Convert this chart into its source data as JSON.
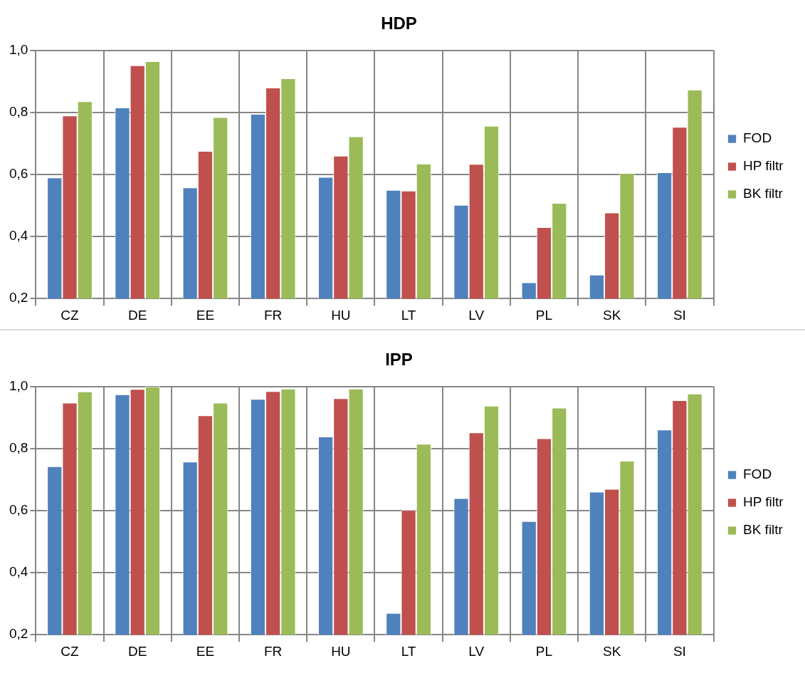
{
  "chart_data": [
    {
      "type": "bar",
      "title": "HDP",
      "categories": [
        "CZ",
        "DE",
        "EE",
        "FR",
        "HU",
        "LT",
        "LV",
        "PL",
        "SK",
        "SI"
      ],
      "series": [
        {
          "name": "FOD",
          "color": "#4f81bd",
          "values": [
            0.59,
            0.816,
            0.558,
            0.795,
            0.592,
            0.55,
            0.502,
            0.252,
            0.277,
            0.607
          ]
        },
        {
          "name": "HP filtr",
          "color": "#c0504d",
          "values": [
            0.79,
            0.952,
            0.676,
            0.88,
            0.66,
            0.548,
            0.634,
            0.43,
            0.477,
            0.753
          ]
        },
        {
          "name": "BK filtr",
          "color": "#9bbb59",
          "values": [
            0.836,
            0.965,
            0.785,
            0.91,
            0.723,
            0.635,
            0.757,
            0.508,
            0.604,
            0.873
          ]
        }
      ],
      "ylim": [
        0.2,
        1.0
      ],
      "yticks": [
        {
          "value": 0.2,
          "label": "0,2"
        },
        {
          "value": 0.4,
          "label": "0,4"
        },
        {
          "value": 0.6,
          "label": "0,6"
        },
        {
          "value": 0.8,
          "label": "0,8"
        },
        {
          "value": 1.0,
          "label": "1,0"
        }
      ],
      "grid": true,
      "legend": "right"
    },
    {
      "type": "bar",
      "title": "IPP",
      "categories": [
        "CZ",
        "DE",
        "EE",
        "FR",
        "HU",
        "LT",
        "LV",
        "PL",
        "SK",
        "SI"
      ],
      "series": [
        {
          "name": "FOD",
          "color": "#4f81bd",
          "values": [
            0.743,
            0.975,
            0.758,
            0.96,
            0.839,
            0.27,
            0.64,
            0.566,
            0.661,
            0.861
          ]
        },
        {
          "name": "HP filtr",
          "color": "#c0504d",
          "values": [
            0.948,
            0.992,
            0.907,
            0.985,
            0.962,
            0.602,
            0.852,
            0.833,
            0.67,
            0.956
          ]
        },
        {
          "name": "BK filtr",
          "color": "#9bbb59",
          "values": [
            0.984,
            1.0,
            0.948,
            0.993,
            0.993,
            0.815,
            0.938,
            0.932,
            0.761,
            0.977
          ]
        }
      ],
      "ylim": [
        0.2,
        1.0
      ],
      "yticks": [
        {
          "value": 0.2,
          "label": "0,2"
        },
        {
          "value": 0.4,
          "label": "0,4"
        },
        {
          "value": 0.6,
          "label": "0,6"
        },
        {
          "value": 0.8,
          "label": "0,8"
        },
        {
          "value": 1.0,
          "label": "1,0"
        }
      ],
      "grid": true,
      "legend": "right"
    }
  ]
}
